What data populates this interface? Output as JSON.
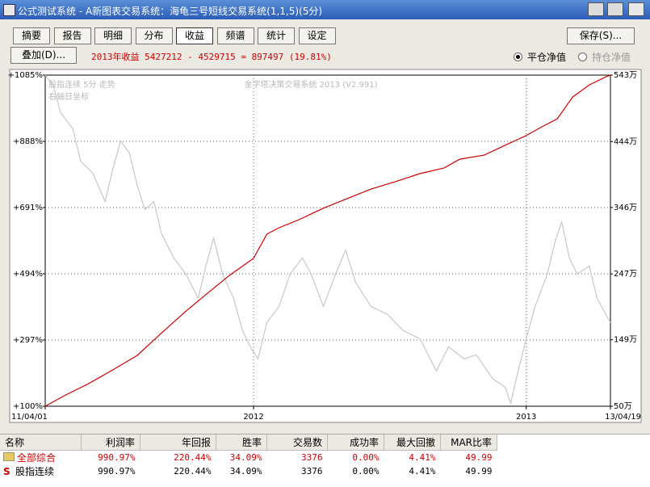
{
  "window": {
    "title": "公式测试系统 - A新图表交易系统：海龟三号短线交易系统(1,1,5)(5分)"
  },
  "tabs": [
    "摘要",
    "报告",
    "明细",
    "分布",
    "收益",
    "频谱",
    "统计",
    "设定"
  ],
  "selected_tab": 4,
  "buttons": {
    "save": "保存(S)...",
    "overlay": "叠加(D)..."
  },
  "summary": "2013年收益 5427212 - 4529715 = 897497 (19.81%)",
  "radios": [
    {
      "label": "平仓净值",
      "checked": true
    },
    {
      "label": "持仓净值",
      "checked": false
    }
  ],
  "chart_data": {
    "type": "line",
    "annotations": [
      "股指连续 5分 走势",
      "右轴日坐标",
      "金字塔决策交易系统 2013 (V2.991)"
    ],
    "xlim": [
      0,
      510
    ],
    "xticks": [
      {
        "value": 0,
        "label": "11/04/01"
      },
      {
        "value": 188,
        "label": "2012"
      },
      {
        "value": 434,
        "label": "2013"
      },
      {
        "value": 510,
        "label": "13/04/19"
      }
    ],
    "xgrid": [
      188,
      434
    ],
    "ylim": [
      100,
      1085
    ],
    "yticks": [
      {
        "value": 1085,
        "label": "+1085%"
      },
      {
        "value": 888,
        "label": "+888%"
      },
      {
        "value": 691,
        "label": "+691%"
      },
      {
        "value": 494,
        "label": "+494%"
      },
      {
        "value": 297,
        "label": "+297%"
      },
      {
        "value": 100,
        "label": "+100%"
      }
    ],
    "y2lim": [
      50,
      543
    ],
    "y2ticks": [
      {
        "value": 543,
        "label": "543万"
      },
      {
        "value": 444,
        "label": "444万"
      },
      {
        "value": 346,
        "label": "346万"
      },
      {
        "value": 247,
        "label": "247万"
      },
      {
        "value": 149,
        "label": "149万"
      },
      {
        "value": 50,
        "label": "50万"
      }
    ],
    "grid": true,
    "series": [
      {
        "color": "#c8c8c8",
        "x": [
          0,
          7,
          14,
          25,
          32,
          43,
          54,
          61,
          68,
          76,
          83,
          90,
          98,
          105,
          116,
          127,
          138,
          145,
          152,
          160,
          170,
          178,
          185,
          192,
          200,
          211,
          221,
          232,
          240,
          251,
          262,
          271,
          280,
          294,
          309,
          323,
          338,
          353,
          364,
          378,
          389,
          404,
          415,
          420,
          425,
          434,
          442,
          453,
          460,
          466,
          473,
          480,
          491,
          498,
          510
        ],
        "values": [
          1085,
          1057,
          973,
          925,
          829,
          793,
          709,
          805,
          889,
          853,
          757,
          685,
          709,
          613,
          541,
          493,
          421,
          517,
          601,
          493,
          421,
          325,
          277,
          241,
          349,
          397,
          493,
          541,
          493,
          397,
          493,
          565,
          469,
          397,
          373,
          325,
          301,
          205,
          277,
          241,
          253,
          181,
          157,
          109,
          181,
          301,
          397,
          493,
          589,
          649,
          541,
          493,
          517,
          421,
          349
        ]
      },
      {
        "color": "#cc0000",
        "x": [
          0,
          17,
          39,
          61,
          83,
          105,
          127,
          149,
          167,
          188,
          200,
          211,
          229,
          251,
          272,
          294,
          316,
          338,
          360,
          374,
          396,
          418,
          434,
          447,
          462,
          476,
          491,
          506,
          510
        ],
        "values": [
          100,
          131,
          167,
          208,
          251,
          318,
          383,
          443,
          491,
          540,
          612,
          631,
          655,
          689,
          717,
          746,
          768,
          792,
          809,
          835,
          847,
          881,
          905,
          929,
          955,
          1020,
          1056,
          1080,
          1085
        ]
      }
    ]
  },
  "table": {
    "headers": [
      "名称",
      "利润率",
      "年回报",
      "胜率",
      "交易数",
      "成功率",
      "最大回撤",
      "MAR比率"
    ],
    "rows": [
      [
        "全部综合",
        "990.97%",
        "220.44%",
        "34.09%",
        "3376",
        "0.00%",
        "4.41%",
        "49.99"
      ],
      [
        "股指连续",
        "990.97%",
        "220.44%",
        "34.09%",
        "3376",
        "0.00%",
        "4.41%",
        "49.99"
      ]
    ]
  }
}
